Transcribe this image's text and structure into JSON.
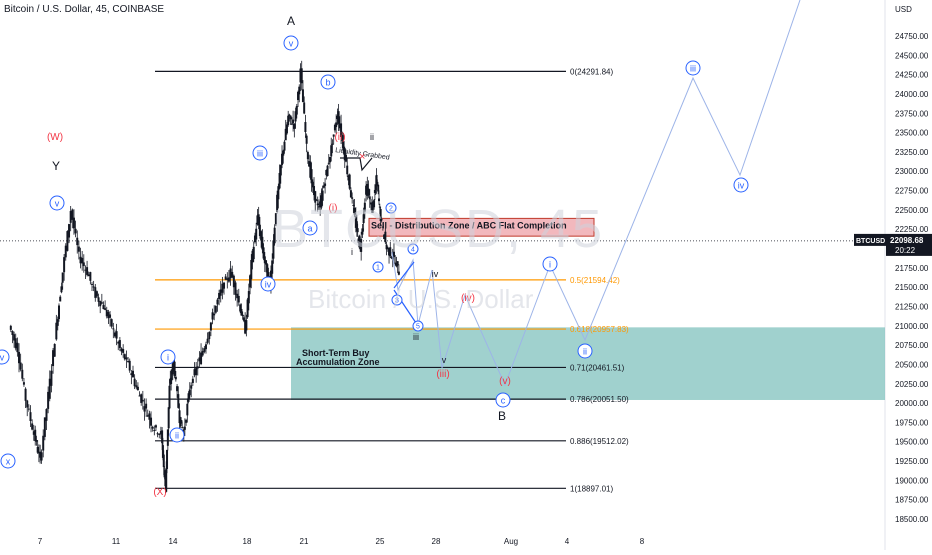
{
  "header": {
    "symbol_title": "Bitcoin / U.S. Dollar, 45, COINBASE",
    "currency": "USD",
    "watermark_ticker": "BTCUSD, 45",
    "watermark_name": "Bitcoin / U.S. Dollar"
  },
  "price_tag": {
    "ticker": "BTCUSD",
    "price": "22098.68",
    "countdown": "20:22",
    "color": "#131722"
  },
  "colors": {
    "candle": "#131722",
    "fib_black": "#131722",
    "fib_orange": "#ff9800",
    "zone_fill": "#80c2bd",
    "sell_zone": "#f2b8bd",
    "wave_blue": "#2962ff",
    "wave_red": "#f23645",
    "projection": "#9db4e8"
  },
  "chart_data": {
    "type": "candlestick",
    "x_axis": {
      "tick_labels": [
        "7",
        "11",
        "14",
        "18",
        "21",
        "25",
        "28",
        "Aug",
        "4",
        "8"
      ]
    },
    "y_axis": {
      "range": [
        18400,
        24900
      ],
      "tick_labels": [
        "24750.00",
        "24500.00",
        "24250.00",
        "24000.00",
        "23750.00",
        "23500.00",
        "23250.00",
        "23000.00",
        "22750.00",
        "22500.00",
        "22250.00",
        "22000.00",
        "21750.00",
        "21500.00",
        "21250.00",
        "21000.00",
        "20750.00",
        "20500.00",
        "20250.00",
        "20000.00",
        "19750.00",
        "19500.00",
        "19250.00",
        "19000.00",
        "18750.00",
        "18500.00"
      ],
      "tick_values": [
        24750,
        24500,
        24250,
        24000,
        23750,
        23500,
        23250,
        23000,
        22750,
        22500,
        22250,
        22000,
        21750,
        21500,
        21250,
        21000,
        20750,
        20500,
        20250,
        20000,
        19750,
        19500,
        19250,
        19000,
        18750,
        18500
      ]
    },
    "price_path": [
      {
        "day": 0,
        "price": 21000
      },
      {
        "day": 0.4,
        "price": 20700
      },
      {
        "day": 0.8,
        "price": 20050
      },
      {
        "day": 1.2,
        "price": 19600
      },
      {
        "day": 1.5,
        "price": 19250
      },
      {
        "day": 1.9,
        "price": 20100
      },
      {
        "day": 2.3,
        "price": 21000
      },
      {
        "day": 2.6,
        "price": 21700
      },
      {
        "day": 3.0,
        "price": 22500
      },
      {
        "day": 3.4,
        "price": 21900
      },
      {
        "day": 3.8,
        "price": 21700
      },
      {
        "day": 4.2,
        "price": 21400
      },
      {
        "day": 4.6,
        "price": 21250
      },
      {
        "day": 5.0,
        "price": 21000
      },
      {
        "day": 5.4,
        "price": 20700
      },
      {
        "day": 5.8,
        "price": 20500
      },
      {
        "day": 6.2,
        "price": 20200
      },
      {
        "day": 6.6,
        "price": 19950
      },
      {
        "day": 7.0,
        "price": 19700
      },
      {
        "day": 7.4,
        "price": 19600
      },
      {
        "day": 7.6,
        "price": 18900
      },
      {
        "day": 7.8,
        "price": 20200
      },
      {
        "day": 8.0,
        "price": 20550
      },
      {
        "day": 8.3,
        "price": 19800
      },
      {
        "day": 8.5,
        "price": 19600
      },
      {
        "day": 8.8,
        "price": 20200
      },
      {
        "day": 9.2,
        "price": 20500
      },
      {
        "day": 9.6,
        "price": 20800
      },
      {
        "day": 10.0,
        "price": 21200
      },
      {
        "day": 10.4,
        "price": 21500
      },
      {
        "day": 10.8,
        "price": 21700
      },
      {
        "day": 11.2,
        "price": 21300
      },
      {
        "day": 11.5,
        "price": 20950
      },
      {
        "day": 11.8,
        "price": 21800
      },
      {
        "day": 12.1,
        "price": 22400
      },
      {
        "day": 12.4,
        "price": 21900
      },
      {
        "day": 12.7,
        "price": 21500
      },
      {
        "day": 13.0,
        "price": 22500
      },
      {
        "day": 13.3,
        "price": 23200
      },
      {
        "day": 13.6,
        "price": 23700
      },
      {
        "day": 13.9,
        "price": 23600
      },
      {
        "day": 14.2,
        "price": 24290
      },
      {
        "day": 14.5,
        "price": 23300
      },
      {
        "day": 14.8,
        "price": 22750
      },
      {
        "day": 15.1,
        "price": 22500
      },
      {
        "day": 15.4,
        "price": 22900
      },
      {
        "day": 15.7,
        "price": 23300
      },
      {
        "day": 16.0,
        "price": 23750
      },
      {
        "day": 16.3,
        "price": 23300
      },
      {
        "day": 16.6,
        "price": 22800
      },
      {
        "day": 16.9,
        "price": 22300
      },
      {
        "day": 17.1,
        "price": 22000
      },
      {
        "day": 17.4,
        "price": 22800
      },
      {
        "day": 17.7,
        "price": 22500
      },
      {
        "day": 17.9,
        "price": 22900
      },
      {
        "day": 18.1,
        "price": 22400
      },
      {
        "day": 18.4,
        "price": 22000
      },
      {
        "day": 18.7,
        "price": 21900
      },
      {
        "day": 19.0,
        "price": 21700
      }
    ],
    "fib_levels": [
      {
        "ratio": "0",
        "label": "0(24291.84)",
        "price": 24291.84,
        "color": "black"
      },
      {
        "ratio": "0.5",
        "label": "0.5(21594.42)",
        "price": 21594.42,
        "color": "orange"
      },
      {
        "ratio": "0.618",
        "label": "0.618(20957.83)",
        "price": 20957.83,
        "color": "orange"
      },
      {
        "ratio": "0.71",
        "label": "0.71(20461.51)",
        "price": 20461.51,
        "color": "black"
      },
      {
        "ratio": "0.786",
        "label": "0.786(20051.50)",
        "price": 20051.5,
        "color": "black"
      },
      {
        "ratio": "0.886",
        "label": "0.886(19512.02)",
        "price": 19512.02,
        "color": "black"
      },
      {
        "ratio": "1",
        "label": "1(18897.01)",
        "price": 18897.01,
        "color": "black"
      }
    ],
    "zones": {
      "buy": {
        "label_line1": "Short-Term Buy",
        "label_line2": "Accumulation Zone",
        "price_top": 20980,
        "price_bottom": 20040
      },
      "sell": {
        "label": "Sell - Distribution Zone / ABC Flat Completion",
        "price_top": 22390,
        "price_bottom": 22160
      }
    },
    "annotations": {
      "liquidity": "Liquidity Grabbed",
      "wave_labels": [
        {
          "id": "A",
          "text": "A",
          "style": "plain"
        },
        {
          "id": "B",
          "text": "B",
          "style": "plain"
        },
        {
          "id": "Y",
          "text": "Y",
          "style": "plain"
        },
        {
          "id": "W",
          "text": "(W)",
          "style": "red"
        },
        {
          "id": "X",
          "text": "(X)",
          "style": "red"
        },
        {
          "id": "v_top",
          "text": "v",
          "style": "blue-circle"
        },
        {
          "id": "b",
          "text": "b",
          "style": "blue-circle"
        },
        {
          "id": "iii_a",
          "text": "iii",
          "style": "blue-circle"
        },
        {
          "id": "iv_a",
          "text": "iv",
          "style": "blue-circle"
        },
        {
          "id": "a",
          "text": "a",
          "style": "blue-circle"
        },
        {
          "id": "ii_b",
          "text": "ii",
          "style": "blue-circle"
        },
        {
          "id": "i_b",
          "text": "i",
          "style": "blue-circle"
        },
        {
          "id": "v_left",
          "text": "v",
          "style": "blue-circle"
        },
        {
          "id": "x_left",
          "text": "x",
          "style": "blue-circle"
        },
        {
          "id": "v_y",
          "text": "v",
          "style": "blue-circle"
        },
        {
          "id": "red_ii",
          "text": "(ii)",
          "style": "red"
        },
        {
          "id": "red_i",
          "text": "(i)",
          "style": "red"
        },
        {
          "id": "ii_plain",
          "text": "ii",
          "style": "plain-small"
        },
        {
          "id": "i_plain",
          "text": "i",
          "style": "plain-small"
        },
        {
          "id": "s1",
          "text": "1",
          "style": "small-circle"
        },
        {
          "id": "s2",
          "text": "2",
          "style": "small-circle"
        },
        {
          "id": "s3",
          "text": "3",
          "style": "small-circle"
        },
        {
          "id": "s4",
          "text": "4",
          "style": "small-circle"
        },
        {
          "id": "s5",
          "text": "5",
          "style": "small-circle"
        },
        {
          "id": "iii_plain",
          "text": "iii",
          "style": "plain-small"
        },
        {
          "id": "iv_plain",
          "text": "iv",
          "style": "plain-small"
        },
        {
          "id": "v_plain",
          "text": "v",
          "style": "plain-small"
        },
        {
          "id": "red_iv",
          "text": "(iv)",
          "style": "red"
        },
        {
          "id": "red_iii",
          "text": "(iii)",
          "style": "red"
        },
        {
          "id": "red_v",
          "text": "(v)",
          "style": "red"
        },
        {
          "id": "c",
          "text": "c",
          "style": "blue-circle"
        },
        {
          "id": "i_proj",
          "text": "i",
          "style": "blue-circle"
        },
        {
          "id": "ii_proj",
          "text": "ii",
          "style": "blue-circle"
        },
        {
          "id": "iii_proj",
          "text": "iii",
          "style": "blue-circle"
        },
        {
          "id": "iv_proj",
          "text": "iv",
          "style": "blue-circle"
        }
      ]
    }
  }
}
